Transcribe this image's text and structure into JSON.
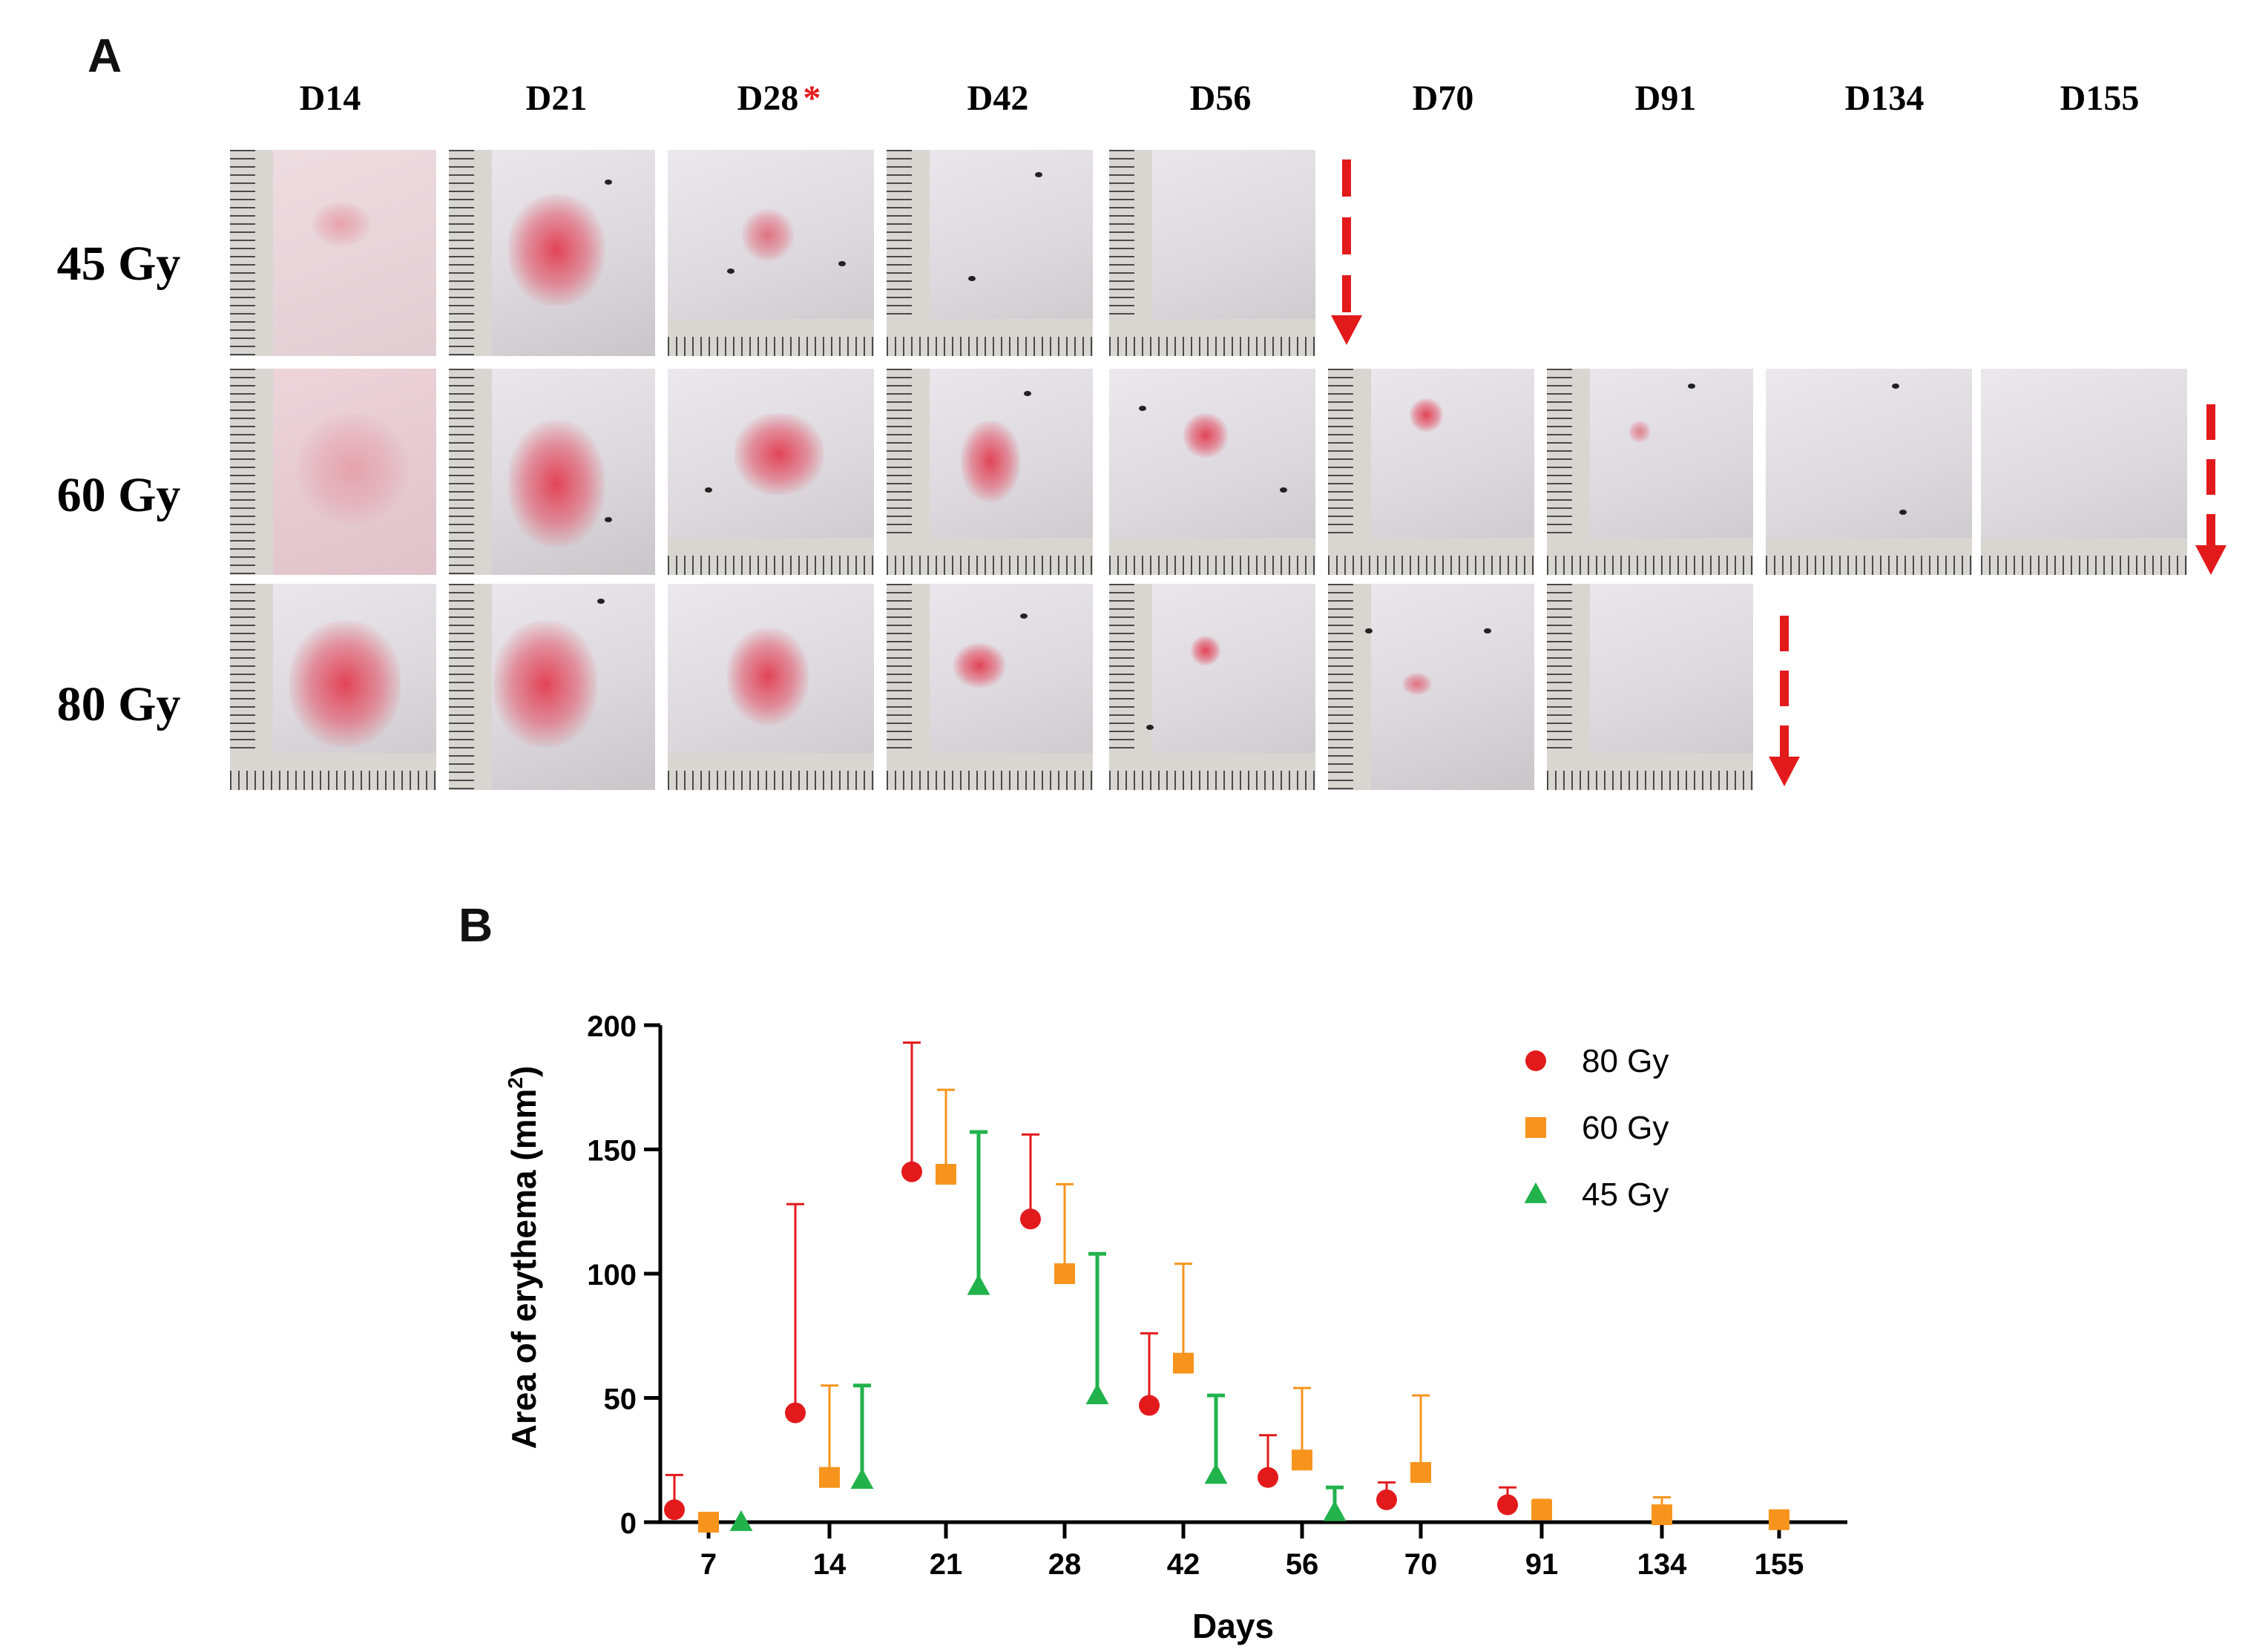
{
  "panel_a": {
    "label": "A",
    "columns": [
      "D14",
      "D21",
      "D28",
      "D42",
      "D56",
      "D70",
      "D91",
      "D134",
      "D155"
    ],
    "asterisk": "*",
    "rows": [
      {
        "dose": "45 Gy",
        "days_shown": [
          "D14",
          "D21",
          "D28",
          "D42",
          "D56"
        ]
      },
      {
        "dose": "60 Gy",
        "days_shown": [
          "D14",
          "D21",
          "D28",
          "D42",
          "D56",
          "D70",
          "D91",
          "D134",
          "D155"
        ]
      },
      {
        "dose": "80 Gy",
        "days_shown": [
          "D14",
          "D21",
          "D28",
          "D42",
          "D56",
          "D70",
          "D91"
        ]
      }
    ],
    "arrow_color": "#e31a1c"
  },
  "panel_b": {
    "label": "B"
  },
  "chart_data": {
    "type": "scatter",
    "title": "",
    "xlabel": "Days",
    "ylabel": "Area of erythema (mm",
    "ylabel_superscript": "2",
    "ylabel_close": ")",
    "ylim": [
      0,
      200
    ],
    "yticks": [
      0,
      50,
      100,
      150,
      200
    ],
    "categories": [
      "7",
      "14",
      "21",
      "28",
      "42",
      "56",
      "70",
      "91",
      "134",
      "155"
    ],
    "error_bars": "mean + upper SD",
    "legend_position": "top-right",
    "series": [
      {
        "name": "80 Gy",
        "color": "#e31a1c",
        "marker": "circle",
        "points": [
          {
            "category": "7",
            "mean": 5,
            "upper": 19
          },
          {
            "category": "14",
            "mean": 44,
            "upper": 128
          },
          {
            "category": "21",
            "mean": 141,
            "upper": 193
          },
          {
            "category": "28",
            "mean": 122,
            "upper": 156
          },
          {
            "category": "42",
            "mean": 47,
            "upper": 76
          },
          {
            "category": "56",
            "mean": 18,
            "upper": 35
          },
          {
            "category": "70",
            "mean": 9,
            "upper": 16
          },
          {
            "category": "91",
            "mean": 7,
            "upper": 14
          }
        ]
      },
      {
        "name": "60 Gy",
        "color": "#f7941d",
        "marker": "square",
        "points": [
          {
            "category": "7",
            "mean": 0,
            "upper": 0
          },
          {
            "category": "14",
            "mean": 18,
            "upper": 55
          },
          {
            "category": "21",
            "mean": 140,
            "upper": 174
          },
          {
            "category": "28",
            "mean": 100,
            "upper": 136
          },
          {
            "category": "42",
            "mean": 64,
            "upper": 104
          },
          {
            "category": "56",
            "mean": 25,
            "upper": 54
          },
          {
            "category": "70",
            "mean": 20,
            "upper": 51
          },
          {
            "category": "91",
            "mean": 5,
            "upper": 9
          },
          {
            "category": "134",
            "mean": 3,
            "upper": 10
          },
          {
            "category": "155",
            "mean": 1,
            "upper": 2
          }
        ]
      },
      {
        "name": "45 Gy",
        "color": "#22b24c",
        "marker": "triangle",
        "points": [
          {
            "category": "7",
            "mean": 0,
            "upper": 0
          },
          {
            "category": "14",
            "mean": 17,
            "upper": 55
          },
          {
            "category": "21",
            "mean": 95,
            "upper": 157
          },
          {
            "category": "28",
            "mean": 51,
            "upper": 108
          },
          {
            "category": "42",
            "mean": 19,
            "upper": 51
          },
          {
            "category": "56",
            "mean": 4,
            "upper": 14
          }
        ]
      }
    ]
  }
}
